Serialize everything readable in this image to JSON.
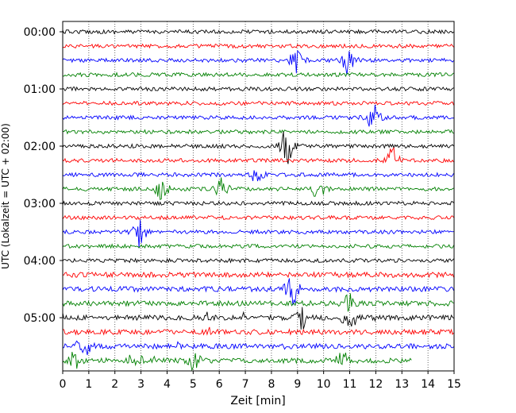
{
  "chart_data": {
    "type": "line",
    "subtype": "helicorder",
    "xlabel": "Zeit  [min]",
    "ylabel": "UTC (Lokalzeit = UTC + 02:00)",
    "xlim": [
      0,
      15
    ],
    "x_ticks": [
      "0",
      "1",
      "2",
      "3",
      "4",
      "5",
      "6",
      "7",
      "8",
      "9",
      "10",
      "11",
      "12",
      "13",
      "14",
      "15"
    ],
    "y_ticks": [
      "00:00",
      "01:00",
      "02:00",
      "03:00",
      "04:00",
      "05:00"
    ],
    "grid": "vertical dotted lines at each minute",
    "trace_interval_minutes": 15,
    "trace_colors": [
      "#000000",
      "#ff0000",
      "#0000ff",
      "#008000"
    ],
    "trace_count": 24,
    "last_trace_end_minute": 13.4,
    "events": [
      {
        "trace": 2,
        "minute": 9.0,
        "amplitude": 1.8
      },
      {
        "trace": 2,
        "minute": 11.0,
        "amplitude": 2.2
      },
      {
        "trace": 6,
        "minute": 11.9,
        "amplitude": 2.0
      },
      {
        "trace": 8,
        "minute": 8.6,
        "amplitude": 2.6
      },
      {
        "trace": 9,
        "minute": 12.6,
        "amplitude": 1.8
      },
      {
        "trace": 10,
        "minute": 7.4,
        "amplitude": 1.4
      },
      {
        "trace": 11,
        "minute": 3.8,
        "amplitude": 1.3
      },
      {
        "trace": 11,
        "minute": 6.1,
        "amplitude": 1.4
      },
      {
        "trace": 11,
        "minute": 9.8,
        "amplitude": 1.2
      },
      {
        "trace": 14,
        "minute": 2.9,
        "amplitude": 2.2
      },
      {
        "trace": 18,
        "minute": 8.8,
        "amplitude": 2.0
      },
      {
        "trace": 19,
        "minute": 11.0,
        "amplitude": 1.3
      },
      {
        "trace": 20,
        "minute": 9.2,
        "amplitude": 1.4
      },
      {
        "trace": 20,
        "minute": 11.0,
        "amplitude": 1.6
      },
      {
        "trace": 22,
        "minute": 0.8,
        "amplitude": 1.4
      },
      {
        "trace": 23,
        "minute": 0.4,
        "amplitude": 1.2
      },
      {
        "trace": 23,
        "minute": 2.8,
        "amplitude": 1.1
      },
      {
        "trace": 23,
        "minute": 5.0,
        "amplitude": 1.1
      },
      {
        "trace": 23,
        "minute": 10.7,
        "amplitude": 1.2
      }
    ]
  }
}
